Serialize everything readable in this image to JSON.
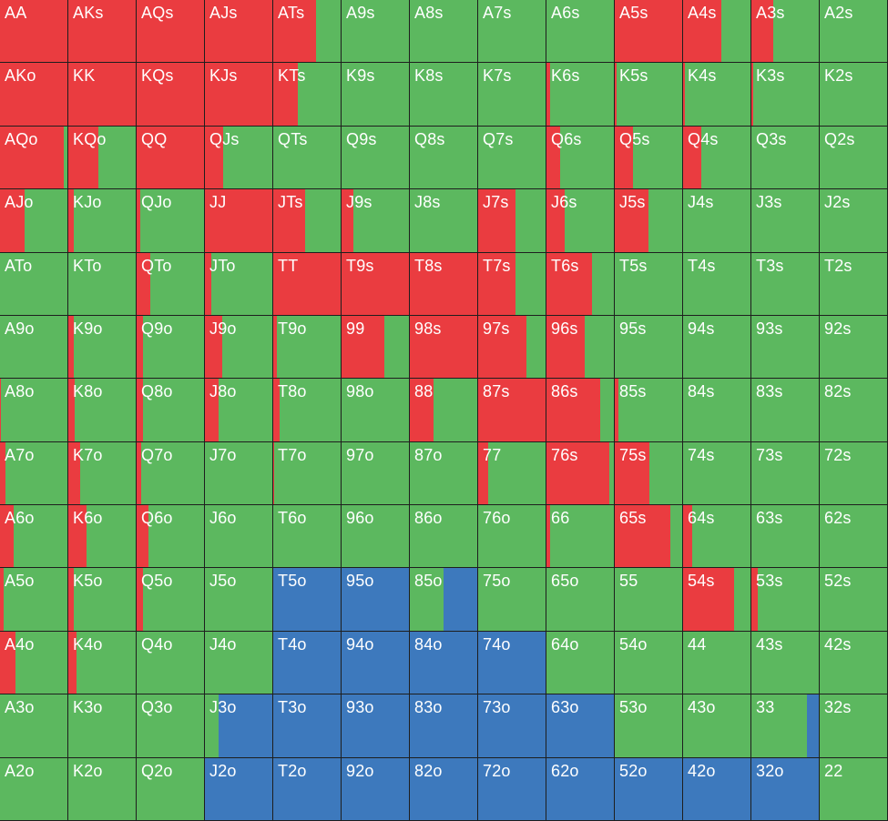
{
  "colors": {
    "red": "#ea3c40",
    "green": "#5cb85f",
    "blue": "#3d79bd"
  },
  "range_chart": {
    "ranks": [
      "A",
      "K",
      "Q",
      "J",
      "T",
      "9",
      "8",
      "7",
      "6",
      "5",
      "4",
      "3",
      "2"
    ],
    "hands": [
      [
        "AA",
        "AKs",
        "AQs",
        "AJs",
        "ATs",
        "A9s",
        "A8s",
        "A7s",
        "A6s",
        "A5s",
        "A4s",
        "A3s",
        "A2s"
      ],
      [
        "AKo",
        "KK",
        "KQs",
        "KJs",
        "KTs",
        "K9s",
        "K8s",
        "K7s",
        "K6s",
        "K5s",
        "K4s",
        "K3s",
        "K2s"
      ],
      [
        "AQo",
        "KQo",
        "QQ",
        "QJs",
        "QTs",
        "Q9s",
        "Q8s",
        "Q7s",
        "Q6s",
        "Q5s",
        "Q4s",
        "Q3s",
        "Q2s"
      ],
      [
        "AJo",
        "KJo",
        "QJo",
        "JJ",
        "JTs",
        "J9s",
        "J8s",
        "J7s",
        "J6s",
        "J5s",
        "J4s",
        "J3s",
        "J2s"
      ],
      [
        "ATo",
        "KTo",
        "QTo",
        "JTo",
        "TT",
        "T9s",
        "T8s",
        "T7s",
        "T6s",
        "T5s",
        "T4s",
        "T3s",
        "T2s"
      ],
      [
        "A9o",
        "K9o",
        "Q9o",
        "J9o",
        "T9o",
        "99",
        "98s",
        "97s",
        "96s",
        "95s",
        "94s",
        "93s",
        "92s"
      ],
      [
        "A8o",
        "K8o",
        "Q8o",
        "J8o",
        "T8o",
        "98o",
        "88",
        "87s",
        "86s",
        "85s",
        "84s",
        "83s",
        "82s"
      ],
      [
        "A7o",
        "K7o",
        "Q7o",
        "J7o",
        "T7o",
        "97o",
        "87o",
        "77",
        "76s",
        "75s",
        "74s",
        "73s",
        "72s"
      ],
      [
        "A6o",
        "K6o",
        "Q6o",
        "J6o",
        "T6o",
        "96o",
        "86o",
        "76o",
        "66",
        "65s",
        "64s",
        "63s",
        "62s"
      ],
      [
        "A5o",
        "K5o",
        "Q5o",
        "J5o",
        "T5o",
        "95o",
        "85o",
        "75o",
        "65o",
        "55",
        "54s",
        "53s",
        "52s"
      ],
      [
        "A4o",
        "K4o",
        "Q4o",
        "J4o",
        "T4o",
        "94o",
        "84o",
        "74o",
        "64o",
        "54o",
        "44",
        "43s",
        "42s"
      ],
      [
        "A3o",
        "K3o",
        "Q3o",
        "J3o",
        "T3o",
        "93o",
        "83o",
        "73o",
        "63o",
        "53o",
        "43o",
        "33",
        "32s"
      ],
      [
        "A2o",
        "K2o",
        "Q2o",
        "J2o",
        "T2o",
        "92o",
        "82o",
        "72o",
        "62o",
        "52o",
        "42o",
        "32o",
        "22"
      ]
    ],
    "red_fraction": [
      [
        1,
        1,
        1,
        1,
        0.63,
        0,
        0,
        0,
        0,
        1,
        0.57,
        0.33,
        0
      ],
      [
        1,
        1,
        1,
        1,
        0.36,
        0,
        0,
        0,
        0.05,
        0.03,
        0.03,
        0.03,
        0
      ],
      [
        0.95,
        0.45,
        1,
        0.27,
        0,
        0,
        0,
        0,
        0.2,
        0.27,
        0.27,
        0,
        0
      ],
      [
        0.37,
        0.08,
        0.05,
        1,
        0.47,
        0.18,
        0,
        0.55,
        0.27,
        0.5,
        0,
        0,
        0
      ],
      [
        0,
        0,
        0.2,
        0.1,
        1,
        1,
        1,
        0.55,
        0.67,
        0,
        0,
        0,
        0
      ],
      [
        0,
        0.08,
        0.09,
        0.25,
        0.05,
        0.63,
        1,
        0.72,
        0.57,
        0,
        0,
        0,
        0
      ],
      [
        0.02,
        0.1,
        0.09,
        0.2,
        0.1,
        0,
        0.35,
        1,
        0.8,
        0.05,
        0,
        0,
        0
      ],
      [
        0.08,
        0.18,
        0.07,
        0,
        0.02,
        0,
        0,
        0.15,
        0.93,
        0.52,
        0,
        0,
        0
      ],
      [
        0.2,
        0.27,
        0.17,
        0,
        0,
        0,
        0,
        0,
        0.05,
        0.83,
        0.13,
        0,
        0
      ],
      [
        0.05,
        0.08,
        0.1,
        0,
        0,
        0,
        0,
        0,
        0,
        0,
        0.75,
        0.1,
        0
      ],
      [
        0.23,
        0.12,
        0,
        0,
        0,
        0,
        0,
        0,
        0,
        0,
        0,
        0,
        0
      ],
      [
        0,
        0,
        0,
        0,
        0,
        0,
        0,
        0,
        0,
        0,
        0,
        0,
        0
      ],
      [
        0,
        0,
        0,
        0,
        0,
        0,
        0,
        0,
        0,
        0,
        0,
        0,
        0
      ]
    ],
    "blue_fraction": [
      [
        0,
        0,
        0,
        0,
        0,
        0,
        0,
        0,
        0,
        0,
        0,
        0,
        0
      ],
      [
        0,
        0,
        0,
        0,
        0,
        0,
        0,
        0,
        0,
        0,
        0,
        0,
        0
      ],
      [
        0,
        0,
        0,
        0,
        0,
        0,
        0,
        0,
        0,
        0,
        0,
        0,
        0
      ],
      [
        0,
        0,
        0,
        0,
        0,
        0,
        0,
        0,
        0,
        0,
        0,
        0,
        0
      ],
      [
        0,
        0,
        0,
        0,
        0,
        0,
        0,
        0,
        0,
        0,
        0,
        0,
        0
      ],
      [
        0,
        0,
        0,
        0,
        0,
        0,
        0,
        0,
        0,
        0,
        0,
        0,
        0
      ],
      [
        0,
        0,
        0,
        0,
        0,
        0,
        0,
        0,
        0,
        0,
        0,
        0,
        0
      ],
      [
        0,
        0,
        0,
        0,
        0,
        0,
        0,
        0,
        0,
        0,
        0,
        0,
        0
      ],
      [
        0,
        0,
        0,
        0,
        0,
        0,
        0,
        0,
        0,
        0,
        0,
        0,
        0
      ],
      [
        0,
        0,
        0,
        0,
        1,
        1,
        0.5,
        0,
        0,
        0,
        0,
        0,
        0
      ],
      [
        0,
        0,
        0,
        0,
        1,
        1,
        1,
        1,
        0,
        0,
        0,
        0,
        0
      ],
      [
        0,
        0,
        0,
        0.8,
        1,
        1,
        1,
        1,
        1,
        0,
        0,
        0.17,
        0
      ],
      [
        0,
        0,
        0,
        1,
        1,
        1,
        1,
        1,
        1,
        1,
        1,
        1,
        0
      ]
    ]
  }
}
